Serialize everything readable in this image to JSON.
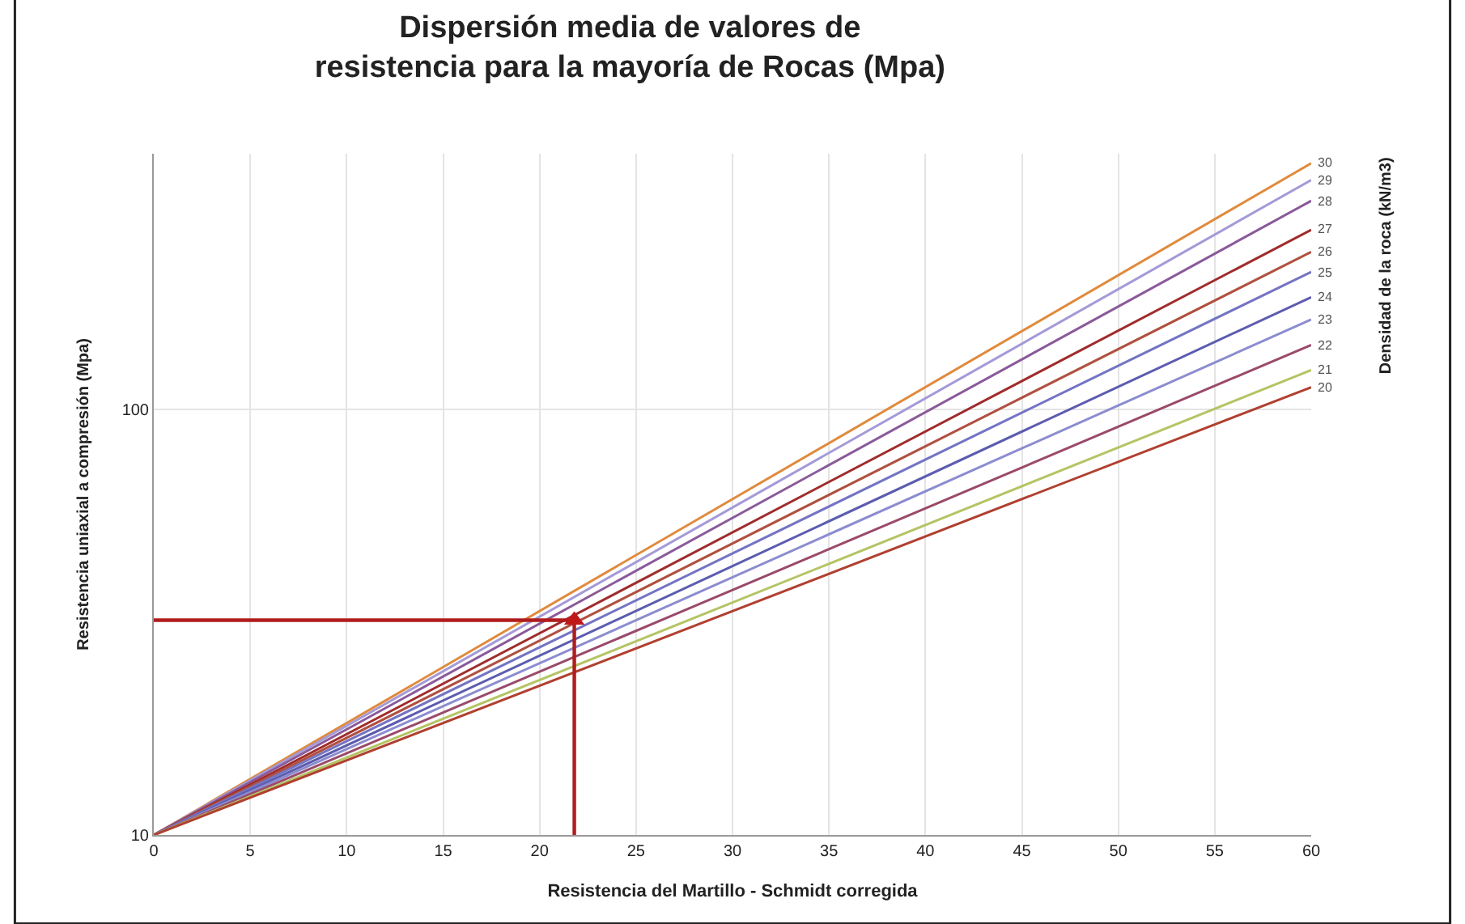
{
  "chart_data": {
    "type": "line",
    "title": "Dispersión media de valores de resistencia para la mayoría de Rocas (Mpa)",
    "xlabel": "Resistencia del Martillo - Schmidt corregida",
    "ylabel": "Resistencia uniaxial a compresión (Mpa)",
    "y2label": "Densidad de la roca (kN/m3)",
    "log": "y",
    "grid": true,
    "legend": false,
    "line_style": "solid",
    "xlim": [
      0,
      60
    ],
    "xticks": [
      0,
      5,
      10,
      15,
      20,
      25,
      30,
      35,
      40,
      45,
      50,
      55,
      60
    ],
    "ylim": [
      10,
      400
    ],
    "yticks": [
      10,
      100
    ],
    "series": [
      {
        "name": "30",
        "color": "#e08a3c",
        "x": [
          0,
          60
        ],
        "values": [
          10,
          380
        ]
      },
      {
        "name": "29",
        "color": "#a49ad8",
        "x": [
          0,
          60
        ],
        "values": [
          10,
          347
        ]
      },
      {
        "name": "28",
        "color": "#8a5a9a",
        "x": [
          0,
          60
        ],
        "values": [
          10,
          310
        ]
      },
      {
        "name": "27",
        "color": "#a02c2c",
        "x": [
          0,
          60
        ],
        "values": [
          10,
          265
        ]
      },
      {
        "name": "26",
        "color": "#b05040",
        "x": [
          0,
          60
        ],
        "values": [
          10,
          235
        ]
      },
      {
        "name": "25",
        "color": "#7474c4",
        "x": [
          0,
          60
        ],
        "values": [
          10,
          211
        ]
      },
      {
        "name": "24",
        "color": "#5c5cb0",
        "x": [
          0,
          60
        ],
        "values": [
          10,
          184
        ]
      },
      {
        "name": "23",
        "color": "#8c8cd0",
        "x": [
          0,
          60
        ],
        "values": [
          10,
          163
        ]
      },
      {
        "name": "22",
        "color": "#9a4a6a",
        "x": [
          0,
          60
        ],
        "values": [
          10,
          142
        ]
      },
      {
        "name": "21",
        "color": "#b4c464",
        "x": [
          0,
          60
        ],
        "values": [
          10,
          124
        ]
      },
      {
        "name": "20",
        "color": "#b04030",
        "x": [
          0,
          60
        ],
        "values": [
          10,
          113
        ]
      },
      {
        "color": "#b01c1c",
        "x": [
          0,
          21.8,
          21.8
        ],
        "values": [
          32,
          32,
          10
        ]
      },
      {
        "type": "scatter",
        "marker": "triangle",
        "color": "#c01818",
        "x": [
          21.8
        ],
        "values": [
          32
        ]
      }
    ]
  }
}
